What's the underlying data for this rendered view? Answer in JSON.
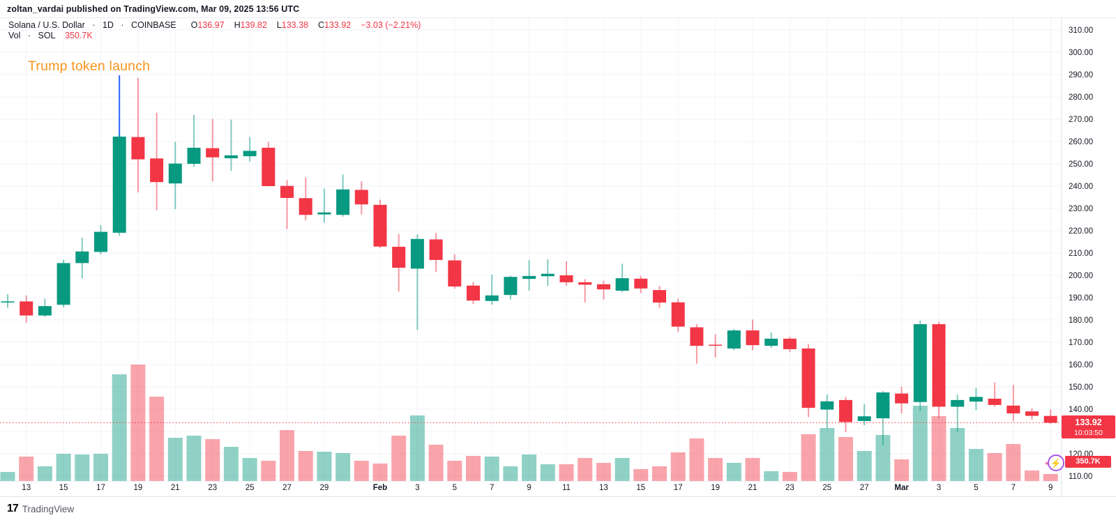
{
  "page": {
    "attribution": "zoltan_vardai published on TradingView.com, Mar 09, 2025 13:56 UTC",
    "brand": "TradingView",
    "brand_mark": "17"
  },
  "legend": {
    "symbol": "Solana / U.S. Dollar",
    "sep": "·",
    "interval": "1D",
    "exchange": "COINBASE",
    "o_key": "O",
    "o_val": "136.97",
    "h_key": "H",
    "h_val": "139.82",
    "l_key": "L",
    "l_val": "133.38",
    "c_key": "C",
    "c_val": "133.92",
    "change": "−3.03 (−2.21%)",
    "vol_key": "Vol",
    "vol_sym": "SOL",
    "vol_val": "350.7K"
  },
  "annotation": {
    "text": "Trump token launch",
    "color": "#f7931a",
    "line_day_index": 6,
    "line_top_price": 289.7,
    "line_color": "#2962ff"
  },
  "price_flag": {
    "price": "133.92",
    "countdown": "10:03:50"
  },
  "vol_flag": {
    "value": "350.7K"
  },
  "boost_icon": {
    "glyph": "⚡",
    "spark": "✦"
  },
  "colors": {
    "up": "#089981",
    "down": "#f23645",
    "vol_up": "rgba(8,153,129,0.45)",
    "vol_down": "rgba(242,54,69,0.45)",
    "grid": "#f0f3fa",
    "axis_text": "#131722",
    "last_price_line": "#f23645",
    "annotation_line": "#2962ff"
  },
  "chart_data": {
    "type": "candlestick+volume",
    "title": "Solana / U.S. Dollar · 1D · COINBASE",
    "interval": "1D",
    "last_price": 133.92,
    "y_axis": {
      "min": 110,
      "max": 310,
      "step": 10,
      "hidden_label": 130
    },
    "x_ticks": [
      [
        "13",
        1,
        0
      ],
      [
        "15",
        3,
        0
      ],
      [
        "17",
        5,
        0
      ],
      [
        "19",
        7,
        0
      ],
      [
        "21",
        9,
        0
      ],
      [
        "23",
        11,
        0
      ],
      [
        "25",
        13,
        0
      ],
      [
        "27",
        15,
        0
      ],
      [
        "29",
        17,
        0
      ],
      [
        "Feb",
        20,
        1
      ],
      [
        "3",
        22,
        0
      ],
      [
        "5",
        24,
        0
      ],
      [
        "7",
        26,
        0
      ],
      [
        "9",
        28,
        0
      ],
      [
        "11",
        30,
        0
      ],
      [
        "13",
        32,
        0
      ],
      [
        "15",
        34,
        0
      ],
      [
        "17",
        36,
        0
      ],
      [
        "19",
        38,
        0
      ],
      [
        "21",
        40,
        0
      ],
      [
        "23",
        42,
        0
      ],
      [
        "25",
        44,
        0
      ],
      [
        "27",
        46,
        0
      ],
      [
        "Mar",
        48,
        1
      ],
      [
        "3",
        50,
        0
      ],
      [
        "5",
        52,
        0
      ],
      [
        "7",
        54,
        0
      ],
      [
        "9",
        56,
        0
      ]
    ],
    "columns": [
      "date",
      "open",
      "high",
      "low",
      "close",
      "vol_rel"
    ],
    "candles": [
      [
        "Jan 12",
        187.8,
        191.5,
        185.5,
        188.3,
        13
      ],
      [
        "Jan 13",
        188.3,
        191.0,
        178.7,
        182.0,
        35
      ],
      [
        "Jan 14",
        182.0,
        189.5,
        181.3,
        186.2,
        21
      ],
      [
        "Jan 15",
        186.8,
        207.0,
        185.7,
        205.5,
        39
      ],
      [
        "Jan 16",
        205.5,
        216.9,
        198.6,
        210.7,
        38
      ],
      [
        "Jan 17",
        210.5,
        222.5,
        209.4,
        219.5,
        39
      ],
      [
        "Jan 18",
        219.1,
        263.5,
        217.7,
        262.2,
        153
      ],
      [
        "Jan 19",
        262.0,
        288.5,
        237.2,
        252.0,
        167
      ],
      [
        "Jan 20",
        252.4,
        272.9,
        229.2,
        241.8,
        121
      ],
      [
        "Jan 21",
        241.2,
        259.9,
        229.7,
        250.1,
        62
      ],
      [
        "Jan 22",
        250.0,
        271.9,
        248.6,
        257.2,
        65
      ],
      [
        "Jan 23",
        257.0,
        270.1,
        242.2,
        252.9,
        60
      ],
      [
        "Jan 24",
        252.5,
        269.8,
        246.8,
        253.8,
        49
      ],
      [
        "Jan 25",
        253.4,
        262.0,
        251.0,
        255.8,
        33
      ],
      [
        "Jan 26",
        257.2,
        259.9,
        239.9,
        240.0,
        29
      ],
      [
        "Jan 27",
        240.1,
        242.7,
        220.8,
        234.7,
        73
      ],
      [
        "Jan 28",
        234.6,
        243.9,
        224.6,
        227.1,
        43
      ],
      [
        "Jan 29",
        227.3,
        238.8,
        223.6,
        228.2,
        42
      ],
      [
        "Jan 30",
        227.1,
        245.2,
        226.3,
        238.5,
        40
      ],
      [
        "Jan 31",
        238.3,
        242.1,
        227.3,
        231.8,
        29
      ],
      [
        "Feb 1",
        231.6,
        233.9,
        212.3,
        212.9,
        25
      ],
      [
        "Feb 2",
        212.8,
        218.5,
        192.7,
        203.4,
        65
      ],
      [
        "Feb 3",
        203.0,
        218.4,
        175.5,
        216.3,
        94
      ],
      [
        "Feb 4",
        216.1,
        219.0,
        201.6,
        206.9,
        52
      ],
      [
        "Feb 5",
        206.7,
        209.4,
        194.0,
        195.0,
        29
      ],
      [
        "Feb 6",
        195.4,
        197.0,
        187.1,
        188.7,
        36
      ],
      [
        "Feb 7",
        188.5,
        200.3,
        186.9,
        191.0,
        35
      ],
      [
        "Feb 8",
        191.2,
        199.8,
        189.2,
        199.3,
        21
      ],
      [
        "Feb 9",
        198.4,
        206.9,
        193.2,
        199.7,
        38
      ],
      [
        "Feb 10",
        199.6,
        207.2,
        195.3,
        200.7,
        24
      ],
      [
        "Feb 11",
        200.0,
        206.3,
        195.3,
        196.9,
        24
      ],
      [
        "Feb 12",
        196.9,
        198.3,
        187.9,
        195.8,
        33
      ],
      [
        "Feb 13",
        196.0,
        197.6,
        189.1,
        193.7,
        26
      ],
      [
        "Feb 14",
        193.1,
        205.2,
        192.5,
        198.7,
        33
      ],
      [
        "Feb 15",
        198.5,
        199.7,
        192.0,
        194.1,
        17
      ],
      [
        "Feb 16",
        193.4,
        195.3,
        185.4,
        187.8,
        21
      ],
      [
        "Feb 17",
        187.9,
        189.5,
        174.6,
        177.0,
        41
      ],
      [
        "Feb 18",
        176.7,
        178.1,
        160.4,
        168.4,
        61
      ],
      [
        "Feb 19",
        168.9,
        173.5,
        163.2,
        168.5,
        33
      ],
      [
        "Feb 20",
        167.2,
        176.0,
        166.5,
        175.3,
        26
      ],
      [
        "Feb 21",
        175.3,
        180.2,
        166.4,
        168.7,
        33
      ],
      [
        "Feb 22",
        168.4,
        174.4,
        167.5,
        171.6,
        14
      ],
      [
        "Feb 23",
        171.6,
        172.5,
        165.6,
        166.9,
        13
      ],
      [
        "Feb 24",
        167.2,
        169.2,
        136.5,
        140.6,
        67
      ],
      [
        "Feb 25",
        139.8,
        146.6,
        131.3,
        143.5,
        76
      ],
      [
        "Feb 26",
        144.1,
        145.5,
        129.6,
        134.2,
        63
      ],
      [
        "Feb 27",
        134.7,
        142.3,
        132.8,
        136.8,
        43
      ],
      [
        "Feb 28",
        135.9,
        148.1,
        123.9,
        147.5,
        66
      ],
      [
        "Mar 1",
        147.0,
        150.1,
        138.1,
        142.6,
        31
      ],
      [
        "Mar 2",
        143.2,
        179.7,
        139.1,
        178.1,
        108
      ],
      [
        "Mar 3",
        178.1,
        179.2,
        136.0,
        141.1,
        93
      ],
      [
        "Mar 4",
        141.1,
        146.6,
        129.7,
        144.1,
        76
      ],
      [
        "Mar 5",
        143.4,
        149.6,
        139.6,
        145.5,
        46
      ],
      [
        "Mar 6",
        144.7,
        152.0,
        141.1,
        141.9,
        40
      ],
      [
        "Mar 7",
        141.6,
        150.9,
        134.6,
        138.1,
        53
      ],
      [
        "Mar 8",
        139.0,
        140.4,
        135.3,
        137.0,
        15
      ],
      [
        "Mar 9",
        136.97,
        139.82,
        133.38,
        133.92,
        10
      ]
    ]
  }
}
